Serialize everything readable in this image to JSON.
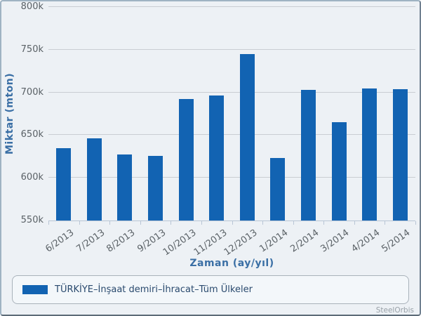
{
  "chart_data": {
    "type": "bar",
    "categories": [
      "6/2013",
      "7/2013",
      "8/2013",
      "9/2013",
      "10/2013",
      "11/2013",
      "12/2013",
      "1/2014",
      "2/2014",
      "3/2014",
      "4/2014",
      "5/2014"
    ],
    "values": [
      635000,
      646000,
      627000,
      626000,
      692000,
      696000,
      745000,
      623000,
      703000,
      665000,
      705000,
      704000
    ],
    "title": "",
    "xlabel": "Zaman (ay/yıl)",
    "ylabel": "Miktar (mton)",
    "ylim": [
      550000,
      800000
    ],
    "ytick_step": 50000,
    "ytick_labels": [
      "550k",
      "600k",
      "650k",
      "700k",
      "750k",
      "800k"
    ],
    "grid": true,
    "bar_color": "#1263b2",
    "legend": {
      "label": "TÜRKİYE–İnşaat demiri–İhracat–Tüm Ülkeler",
      "position": "bottom"
    }
  },
  "watermark": "SteelOrbis",
  "colors": {
    "background": "#edf1f5",
    "bar": "#1263b2",
    "gridline": "#c9cdd2",
    "axis_line": "#b9c6d6",
    "tick_text": "#5a6166",
    "axis_title_text": "#3a6fa5",
    "legend_text": "#2a4a6e",
    "frame_border": "#9fb3c3",
    "watermark_text": "#98a1a8"
  }
}
